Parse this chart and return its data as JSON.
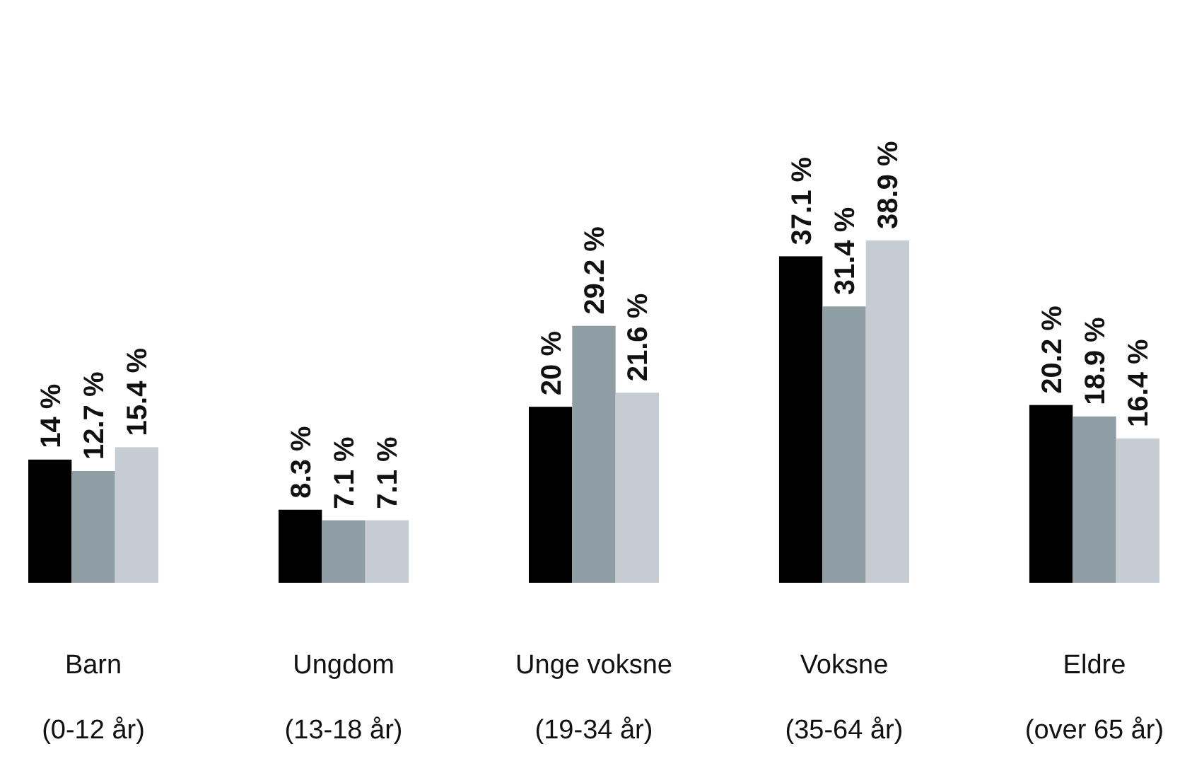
{
  "chart_data": {
    "type": "bar",
    "categories": [
      "Barn\n(0-12 år)",
      "Ungdom\n(13-18 år)",
      "Unge voksne\n(19-34 år)",
      "Voksne\n(35-64 år)",
      "Eldre\n(over 65 år)"
    ],
    "series": [
      {
        "color": "#000000",
        "values": [
          14,
          8.3,
          20,
          37.1,
          20.2
        ],
        "value_labels": [
          "14 %",
          "8.3 %",
          "20 %",
          "37.1 %",
          "20.2 %"
        ]
      },
      {
        "color": "#8e9ea4",
        "values": [
          12.7,
          7.1,
          29.2,
          31.4,
          18.9
        ],
        "value_labels": [
          "12.7 %",
          "7.1 %",
          "29.2 %",
          "31.4 %",
          "18.9 %"
        ]
      },
      {
        "color": "#c5cdd2",
        "values": [
          15.4,
          7.1,
          21.6,
          38.9,
          16.4
        ],
        "value_labels": [
          "15.4 %",
          "7.1 %",
          "21.6 %",
          "38.9 %",
          "16.4 %"
        ]
      }
    ],
    "stacked": false
  }
}
